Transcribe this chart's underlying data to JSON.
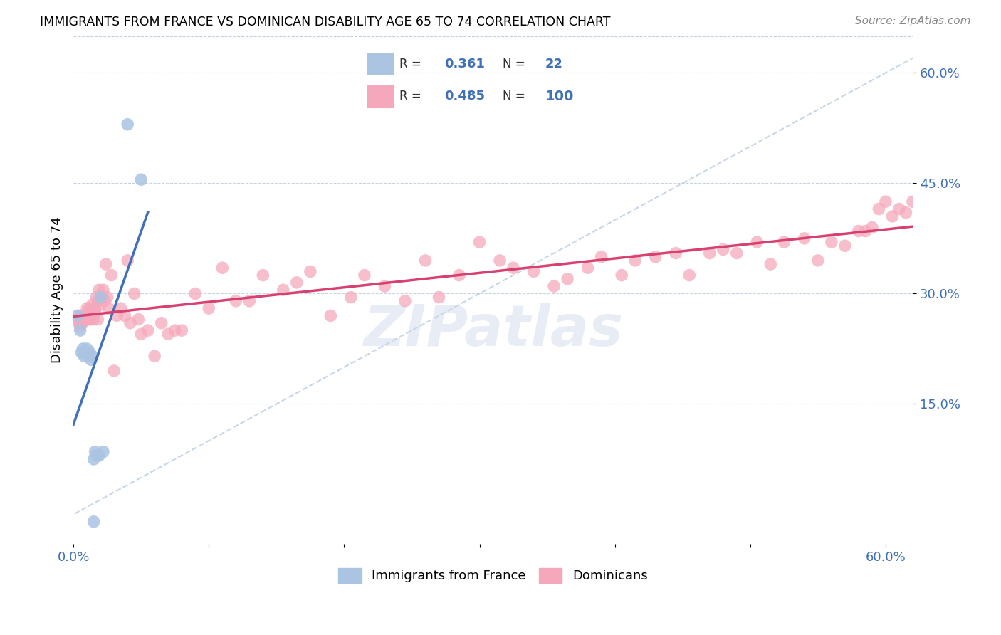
{
  "title": "IMMIGRANTS FROM FRANCE VS DOMINICAN DISABILITY AGE 65 TO 74 CORRELATION CHART",
  "source": "Source: ZipAtlas.com",
  "ylabel": "Disability Age 65 to 74",
  "xlim": [
    0.0,
    0.62
  ],
  "ylim": [
    -0.04,
    0.65
  ],
  "yticks": [
    0.15,
    0.3,
    0.45,
    0.6
  ],
  "ytick_labels": [
    "15.0%",
    "30.0%",
    "45.0%",
    "60.0%"
  ],
  "xticks": [
    0.0,
    0.1,
    0.2,
    0.3,
    0.4,
    0.5,
    0.6
  ],
  "xtick_labels": [
    "0.0%",
    "",
    "",
    "",
    "",
    "",
    "60.0%"
  ],
  "legend_france_R": "0.361",
  "legend_france_N": "22",
  "legend_dominican_R": "0.485",
  "legend_dominican_N": "100",
  "france_color": "#aac4e2",
  "dominican_color": "#f5a8bc",
  "france_line_color": "#4070b8",
  "dominican_line_color": "#d84070",
  "diagonal_color": "#b8cce0",
  "background_color": "#ffffff",
  "watermark": "ZIPatlas",
  "france_x": [
    0.003,
    0.005,
    0.006,
    0.007,
    0.008,
    0.008,
    0.009,
    0.01,
    0.011,
    0.012,
    0.013,
    0.014,
    0.015,
    0.015,
    0.016,
    0.017,
    0.018,
    0.019,
    0.02,
    0.022,
    0.04,
    0.05
  ],
  "france_y": [
    0.27,
    0.25,
    0.22,
    0.225,
    0.22,
    0.215,
    0.22,
    0.225,
    0.215,
    0.22,
    0.21,
    0.215,
    -0.01,
    0.075,
    0.085,
    0.08,
    0.08,
    0.08,
    0.295,
    0.085,
    0.53,
    0.455
  ],
  "dominican_x": [
    0.003,
    0.004,
    0.005,
    0.005,
    0.006,
    0.006,
    0.007,
    0.007,
    0.008,
    0.009,
    0.009,
    0.01,
    0.01,
    0.011,
    0.011,
    0.012,
    0.012,
    0.013,
    0.013,
    0.014,
    0.015,
    0.015,
    0.016,
    0.016,
    0.017,
    0.018,
    0.018,
    0.019,
    0.02,
    0.021,
    0.022,
    0.023,
    0.024,
    0.025,
    0.026,
    0.028,
    0.03,
    0.032,
    0.035,
    0.038,
    0.04,
    0.042,
    0.045,
    0.048,
    0.05,
    0.055,
    0.06,
    0.065,
    0.07,
    0.075,
    0.08,
    0.09,
    0.1,
    0.11,
    0.12,
    0.13,
    0.14,
    0.155,
    0.165,
    0.175,
    0.19,
    0.205,
    0.215,
    0.23,
    0.245,
    0.26,
    0.27,
    0.285,
    0.3,
    0.315,
    0.325,
    0.34,
    0.355,
    0.365,
    0.38,
    0.39,
    0.405,
    0.415,
    0.43,
    0.445,
    0.455,
    0.47,
    0.48,
    0.49,
    0.505,
    0.515,
    0.525,
    0.54,
    0.55,
    0.56,
    0.57,
    0.58,
    0.585,
    0.59,
    0.595,
    0.6,
    0.605,
    0.61,
    0.615,
    0.62
  ],
  "dominican_y": [
    0.265,
    0.26,
    0.27,
    0.255,
    0.265,
    0.26,
    0.27,
    0.26,
    0.27,
    0.265,
    0.27,
    0.265,
    0.28,
    0.275,
    0.27,
    0.28,
    0.265,
    0.265,
    0.275,
    0.285,
    0.265,
    0.275,
    0.275,
    0.28,
    0.295,
    0.265,
    0.29,
    0.305,
    0.285,
    0.295,
    0.305,
    0.29,
    0.34,
    0.295,
    0.28,
    0.325,
    0.195,
    0.27,
    0.28,
    0.27,
    0.345,
    0.26,
    0.3,
    0.265,
    0.245,
    0.25,
    0.215,
    0.26,
    0.245,
    0.25,
    0.25,
    0.3,
    0.28,
    0.335,
    0.29,
    0.29,
    0.325,
    0.305,
    0.315,
    0.33,
    0.27,
    0.295,
    0.325,
    0.31,
    0.29,
    0.345,
    0.295,
    0.325,
    0.37,
    0.345,
    0.335,
    0.33,
    0.31,
    0.32,
    0.335,
    0.35,
    0.325,
    0.345,
    0.35,
    0.355,
    0.325,
    0.355,
    0.36,
    0.355,
    0.37,
    0.34,
    0.37,
    0.375,
    0.345,
    0.37,
    0.365,
    0.385,
    0.385,
    0.39,
    0.415,
    0.425,
    0.405,
    0.415,
    0.41,
    0.425
  ]
}
